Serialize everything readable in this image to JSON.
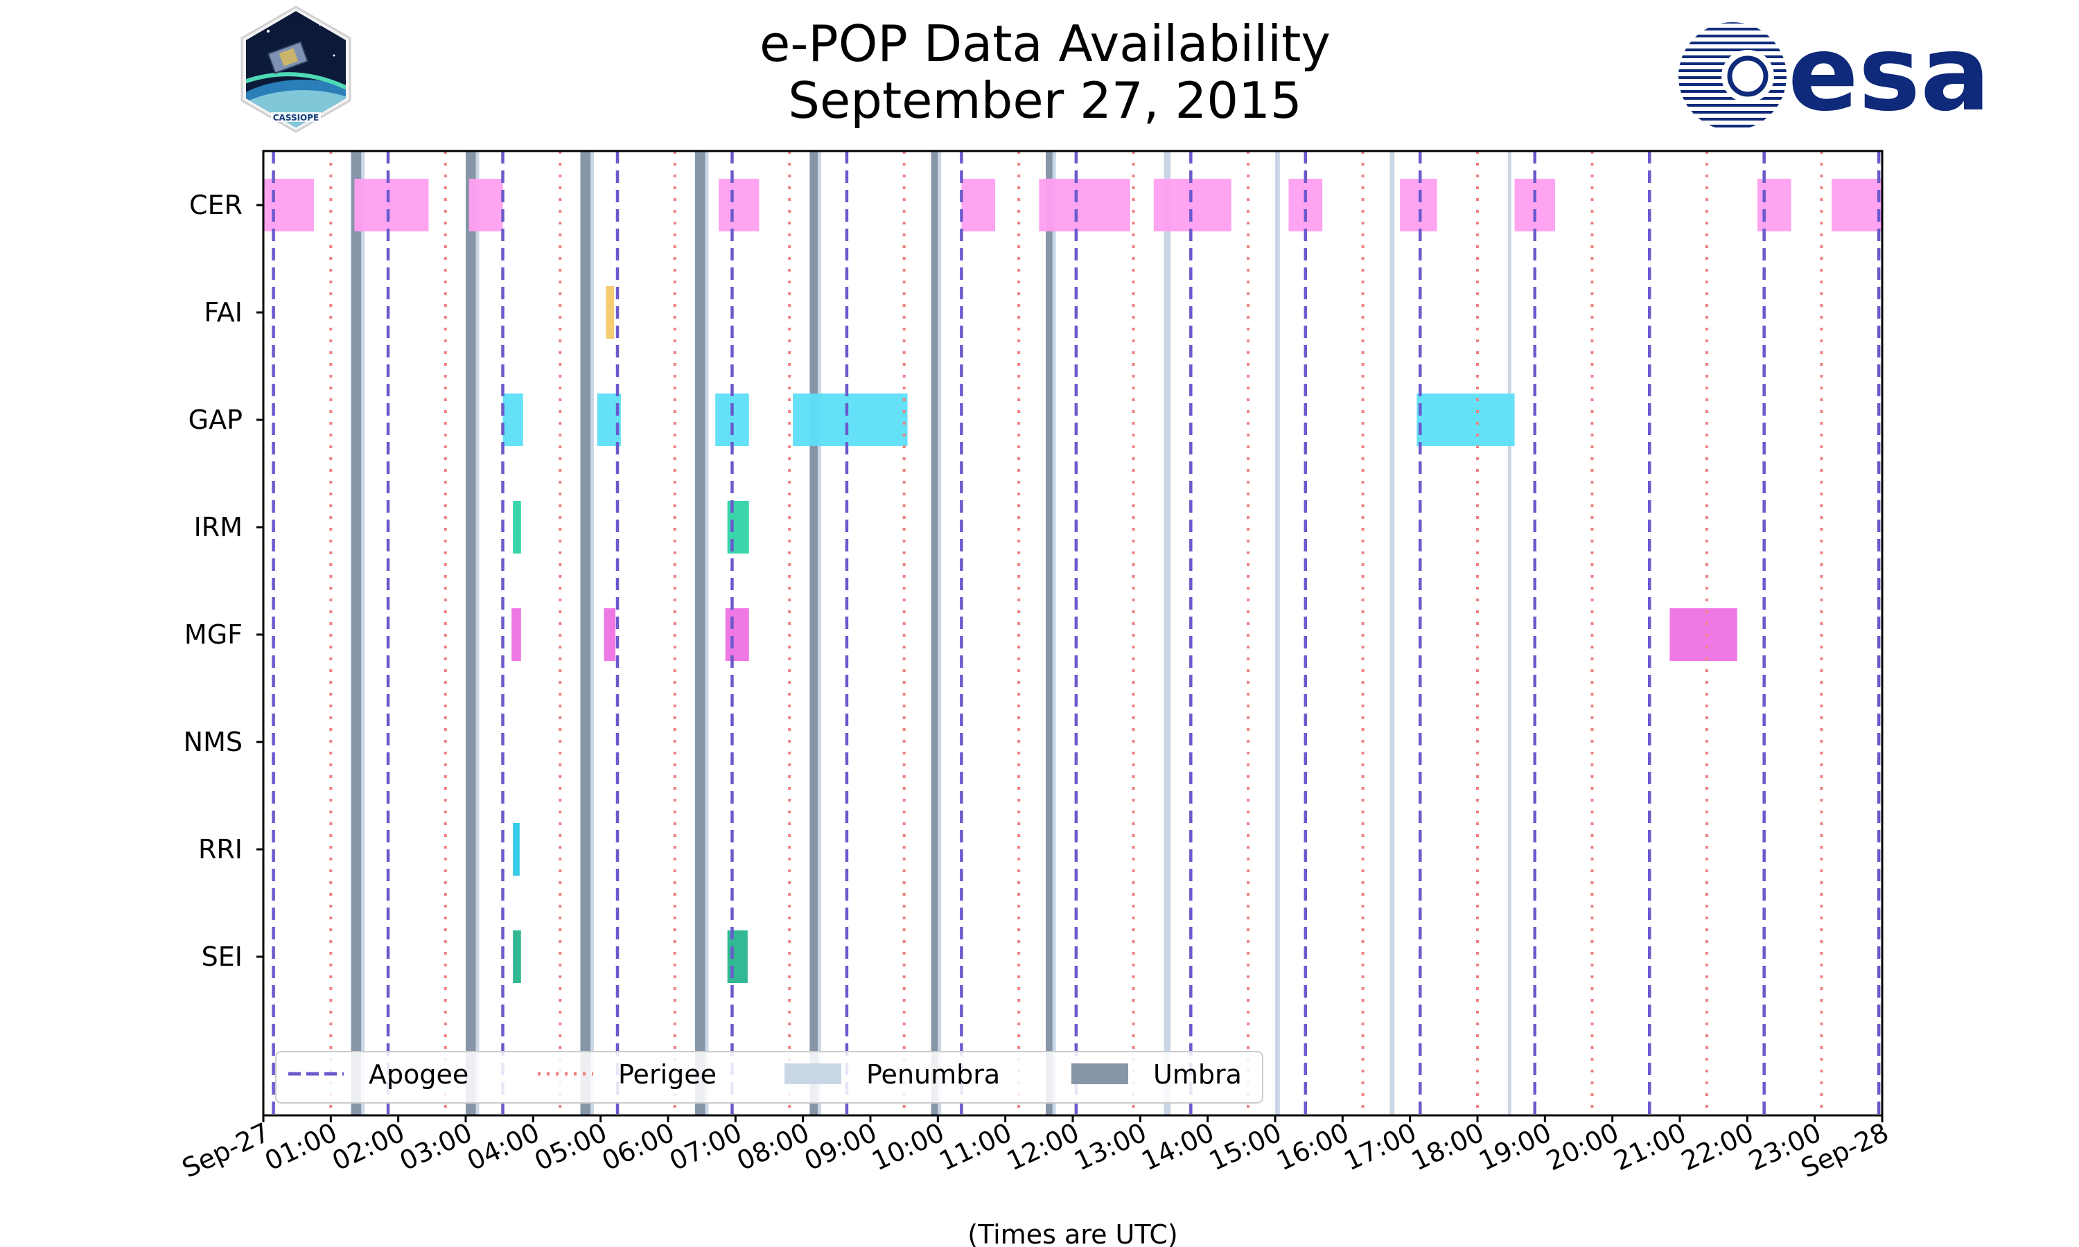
{
  "chart_data": {
    "type": "timeline",
    "title": [
      "e-POP Data Availability",
      "September 27, 2015"
    ],
    "xlabel": "(Times are UTC)",
    "x_range_hours": [
      0,
      24
    ],
    "x_tick_hours": [
      0,
      1,
      2,
      3,
      4,
      5,
      6,
      7,
      8,
      9,
      10,
      11,
      12,
      13,
      14,
      15,
      16,
      17,
      18,
      19,
      20,
      21,
      22,
      23,
      24
    ],
    "x_tick_labels": [
      "Sep-27",
      "01:00",
      "02:00",
      "03:00",
      "04:00",
      "05:00",
      "06:00",
      "07:00",
      "08:00",
      "09:00",
      "10:00",
      "11:00",
      "12:00",
      "13:00",
      "14:00",
      "15:00",
      "16:00",
      "17:00",
      "18:00",
      "19:00",
      "20:00",
      "21:00",
      "22:00",
      "23:00",
      "Sep-28"
    ],
    "instruments": [
      "CER",
      "FAI",
      "GAP",
      "IRM",
      "MGF",
      "NMS",
      "RRI",
      "SEI"
    ],
    "series": [
      {
        "name": "CER",
        "color": "#ff9ff0",
        "intervals": [
          [
            0,
            0.75
          ],
          [
            1.35,
            2.45
          ],
          [
            3.05,
            3.55
          ],
          [
            6.75,
            7.35
          ],
          [
            10.35,
            10.85
          ],
          [
            11.5,
            12.85
          ],
          [
            13.2,
            14.35
          ],
          [
            15.2,
            15.7
          ],
          [
            16.85,
            17.4
          ],
          [
            18.55,
            19.15
          ],
          [
            22.15,
            22.65
          ],
          [
            23.25,
            24
          ]
        ]
      },
      {
        "name": "FAI",
        "color": "#f5c96b",
        "intervals": [
          [
            5.08,
            5.2
          ]
        ]
      },
      {
        "name": "GAP",
        "color": "#5ddff7",
        "intervals": [
          [
            3.55,
            3.85
          ],
          [
            4.95,
            5.3
          ],
          [
            6.7,
            7.2
          ],
          [
            7.85,
            9.55
          ],
          [
            17.1,
            18.55
          ]
        ]
      },
      {
        "name": "IRM",
        "color": "#2fd3a6",
        "intervals": [
          [
            3.7,
            3.82
          ],
          [
            6.88,
            7.2
          ]
        ]
      },
      {
        "name": "MGF",
        "color": "#ee72e3",
        "intervals": [
          [
            3.68,
            3.82
          ],
          [
            5.05,
            5.22
          ],
          [
            6.85,
            7.2
          ],
          [
            20.85,
            21.85
          ]
        ]
      },
      {
        "name": "NMS",
        "color": "#888888",
        "intervals": []
      },
      {
        "name": "RRI",
        "color": "#2ac8e8",
        "intervals": [
          [
            3.7,
            3.8
          ]
        ]
      },
      {
        "name": "SEI",
        "color": "#27b58d",
        "intervals": [
          [
            3.7,
            3.82
          ],
          [
            6.88,
            7.18
          ]
        ]
      }
    ],
    "apogee_hours": [
      0.15,
      1.85,
      3.55,
      5.25,
      6.95,
      8.65,
      10.35,
      12.05,
      13.75,
      15.45,
      17.15,
      18.85,
      20.55,
      22.25,
      23.95
    ],
    "perigee_hours": [
      1.0,
      2.7,
      4.4,
      6.1,
      7.8,
      9.5,
      11.2,
      12.9,
      14.6,
      16.3,
      18.0,
      19.7,
      21.4,
      23.1
    ],
    "umbra": [
      [
        1.3,
        1.45
      ],
      [
        3.0,
        3.15
      ],
      [
        4.7,
        4.85
      ],
      [
        6.4,
        6.55
      ],
      [
        8.1,
        8.22
      ],
      [
        9.9,
        10.0
      ],
      [
        11.6,
        11.7
      ]
    ],
    "penumbra": [
      [
        1.45,
        1.5
      ],
      [
        3.15,
        3.2
      ],
      [
        4.85,
        4.9
      ],
      [
        6.55,
        6.6
      ],
      [
        8.22,
        8.27
      ],
      [
        10.0,
        10.05
      ],
      [
        11.7,
        11.75
      ],
      [
        13.35,
        13.45
      ],
      [
        15.0,
        15.07
      ],
      [
        16.7,
        16.77
      ],
      [
        18.45,
        18.5
      ]
    ],
    "legend": {
      "position": "bottom-left",
      "entries": [
        "Apogee",
        "Perigee",
        "Penumbra",
        "Umbra"
      ]
    },
    "colors": {
      "apogee": "#6a5acd",
      "perigee": "#f08080",
      "penumbra": "#c9d6e6",
      "umbra": "#8696a8",
      "esa_blue": "#0f2a7a"
    }
  },
  "logos": {
    "cassiope_text": "CASSIOPE",
    "esa_text": "esa"
  }
}
